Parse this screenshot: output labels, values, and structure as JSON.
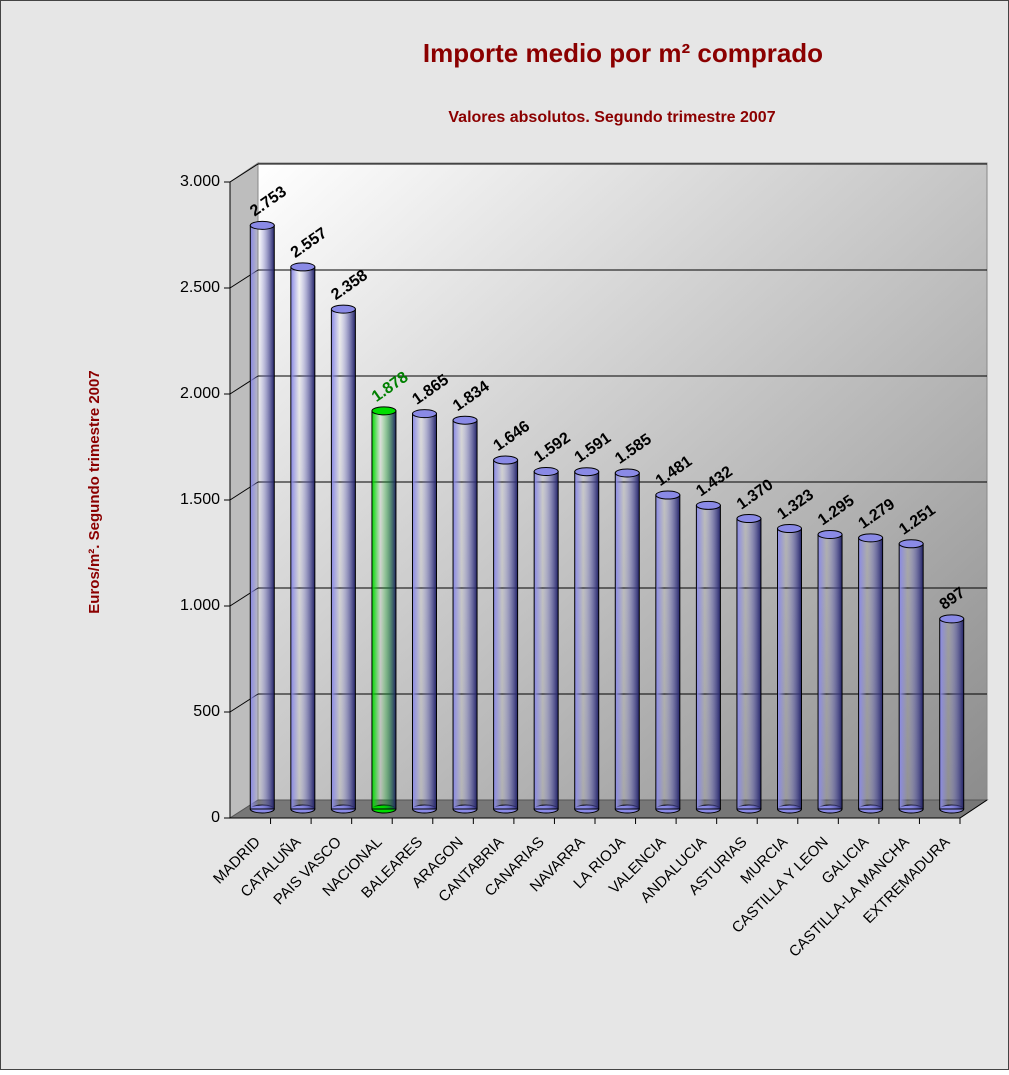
{
  "chart_data": {
    "type": "bar",
    "title": "Importe medio por m² comprado",
    "subtitle": "Valores absolutos. Segundo trimestre 2007",
    "y_label": "Euros/m². Segundo trimestre 2007",
    "categories": [
      "MADRID",
      "CATALUÑA",
      "PAIS VASCO",
      "NACIONAL",
      "BALEARES",
      "ARAGON",
      "CANTABRIA",
      "CANARIAS",
      "NAVARRA",
      "LA RIOJA",
      "VALENCIA",
      "ANDALUCIA",
      "ASTURIAS",
      "MURCIA",
      "CASTILLA Y LEON",
      "GALICIA",
      "CASTILLA-LA MANCHA",
      "EXTREMADURA"
    ],
    "values": [
      2753,
      2557,
      2358,
      1878,
      1865,
      1834,
      1646,
      1592,
      1591,
      1585,
      1481,
      1432,
      1370,
      1323,
      1295,
      1279,
      1251,
      897
    ],
    "value_labels": [
      "2.753",
      "2.557",
      "2.358",
      "1.878",
      "1.865",
      "1.834",
      "1.646",
      "1.592",
      "1.591",
      "1.585",
      "1.481",
      "1.432",
      "1.370",
      "1.323",
      "1.295",
      "1.279",
      "1.251",
      "897"
    ],
    "colors": [
      "#8a8ae6",
      "#8a8ae6",
      "#8a8ae6",
      "#00dd00",
      "#8a8ae6",
      "#8a8ae6",
      "#8a8ae6",
      "#8a8ae6",
      "#8a8ae6",
      "#8a8ae6",
      "#8a8ae6",
      "#8a8ae6",
      "#8a8ae6",
      "#8a8ae6",
      "#8a8ae6",
      "#8a8ae6",
      "#8a8ae6",
      "#8a8ae6"
    ],
    "label_colors": [
      "#000000",
      "#000000",
      "#000000",
      "#008000",
      "#000000",
      "#000000",
      "#000000",
      "#000000",
      "#000000",
      "#000000",
      "#000000",
      "#000000",
      "#000000",
      "#000000",
      "#000000",
      "#000000",
      "#000000",
      "#000000"
    ],
    "ylim": [
      0,
      3000
    ],
    "yticks": [
      0,
      500,
      {
        "value": 1000,
        "label": "1.000"
      },
      {
        "value": 1500,
        "label": "1.500"
      },
      {
        "value": 2000,
        "label": "2.000"
      },
      {
        "value": 2500,
        "label": "2.500"
      },
      {
        "value": 3000,
        "label": "3.000"
      }
    ],
    "grid": true
  }
}
